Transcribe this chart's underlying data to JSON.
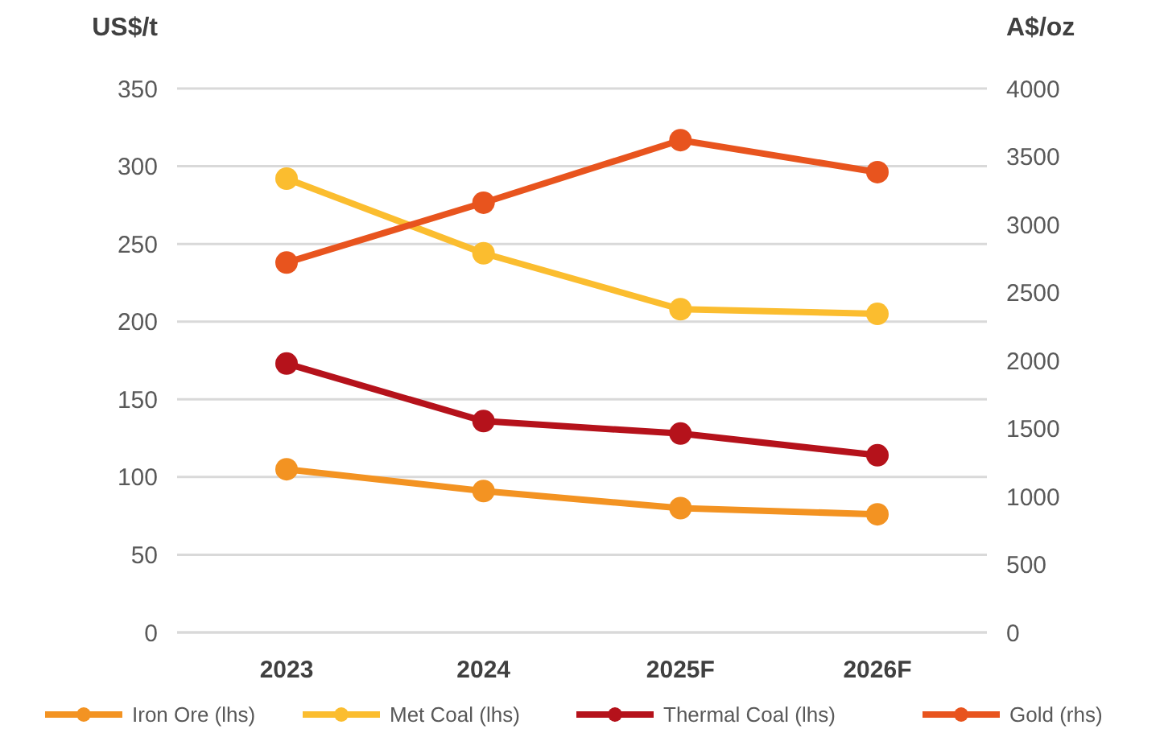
{
  "chart_data": {
    "type": "line",
    "ylabel": "US$/t",
    "y2label": "A$/oz",
    "categories": [
      "2023",
      "2024",
      "2025F",
      "2026F"
    ],
    "series": [
      {
        "name": "Iron Ore (lhs)",
        "color": "#f39322",
        "values": [
          105,
          91,
          80,
          76
        ]
      },
      {
        "name": "Met Coal (lhs)",
        "color": "#fbbd2f",
        "values": [
          292,
          244,
          208,
          205
        ]
      },
      {
        "name": "Thermal Coal (lhs)",
        "color": "#b5121b",
        "values": [
          173,
          136,
          128,
          114
        ]
      },
      {
        "name": "Gold (rhs)",
        "color": "#e8541e",
        "values": [
          2720,
          3160,
          3620,
          3385
        ],
        "axis": "y2"
      }
    ],
    "ylim": [
      0,
      350
    ],
    "yticks": [
      0,
      50,
      100,
      150,
      200,
      250,
      300,
      350
    ],
    "y2lim": [
      0,
      4000
    ],
    "y2ticks": [
      0,
      500,
      1000,
      1500,
      2000,
      2500,
      3000,
      3500,
      4000
    ],
    "grid": "y",
    "legend": "bottom",
    "marker": "circle",
    "line_style": "solid"
  }
}
